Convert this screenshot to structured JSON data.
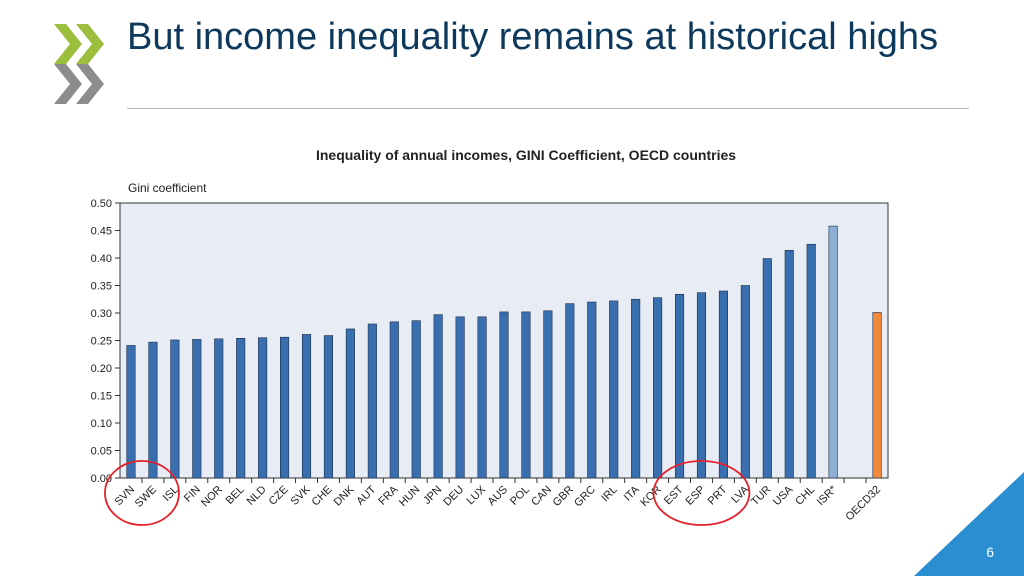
{
  "slide": {
    "title": "But income inequality remains at historical highs",
    "page_number": "6"
  },
  "logo": {
    "icon": "oecd-chevron-logo-icon",
    "color": "#9bbe3c"
  },
  "chart_data": {
    "type": "bar",
    "title": "Inequality of annual incomes, GINI Coefficient, OECD countries",
    "ylabel": "Gini coefficient",
    "xlabel": "",
    "ylim": [
      0,
      0.5
    ],
    "yticks": [
      "0.00",
      "0.05",
      "0.10",
      "0.15",
      "0.20",
      "0.25",
      "0.30",
      "0.35",
      "0.40",
      "0.45",
      "0.50"
    ],
    "grid": false,
    "legend": "none",
    "categories": [
      "SVN",
      "SWE",
      "ISL",
      "FIN",
      "NOR",
      "BEL",
      "NLD",
      "CZE",
      "SVK",
      "CHE",
      "DNK",
      "AUT",
      "FRA",
      "HUN",
      "JPN",
      "DEU",
      "LUX",
      "AUS",
      "POL",
      "CAN",
      "GBR",
      "GRC",
      "IRL",
      "ITA",
      "KOR",
      "EST",
      "ESP",
      "PRT",
      "LVA",
      "TUR",
      "USA",
      "CHL",
      "ISR*",
      "",
      "OECD32"
    ],
    "values": [
      0.241,
      0.247,
      0.251,
      0.252,
      0.253,
      0.254,
      0.255,
      0.256,
      0.261,
      0.259,
      0.271,
      0.28,
      0.284,
      0.286,
      0.297,
      0.293,
      0.293,
      0.302,
      0.302,
      0.304,
      0.317,
      0.32,
      0.322,
      0.325,
      0.328,
      0.334,
      0.337,
      0.34,
      0.35,
      0.399,
      0.414,
      0.425,
      0.458,
      null,
      0.301
    ],
    "colors": {
      "default": "#3a6faf",
      "highlight_light": "#8eaed3",
      "oecd_average": "#f08a3a",
      "circle": "#e8202a",
      "plot_area": "#e8edf5"
    },
    "bar_color_roles": [
      "default",
      "default",
      "default",
      "default",
      "default",
      "default",
      "default",
      "default",
      "default",
      "default",
      "default",
      "default",
      "default",
      "default",
      "default",
      "default",
      "default",
      "default",
      "default",
      "default",
      "default",
      "default",
      "default",
      "default",
      "default",
      "default",
      "default",
      "default",
      "default",
      "default",
      "default",
      "default",
      "highlight_light",
      null,
      "oecd_average"
    ],
    "circled_groups": [
      [
        "SVN",
        "SWE"
      ],
      [
        "EST",
        "ESP",
        "PRT"
      ]
    ]
  }
}
